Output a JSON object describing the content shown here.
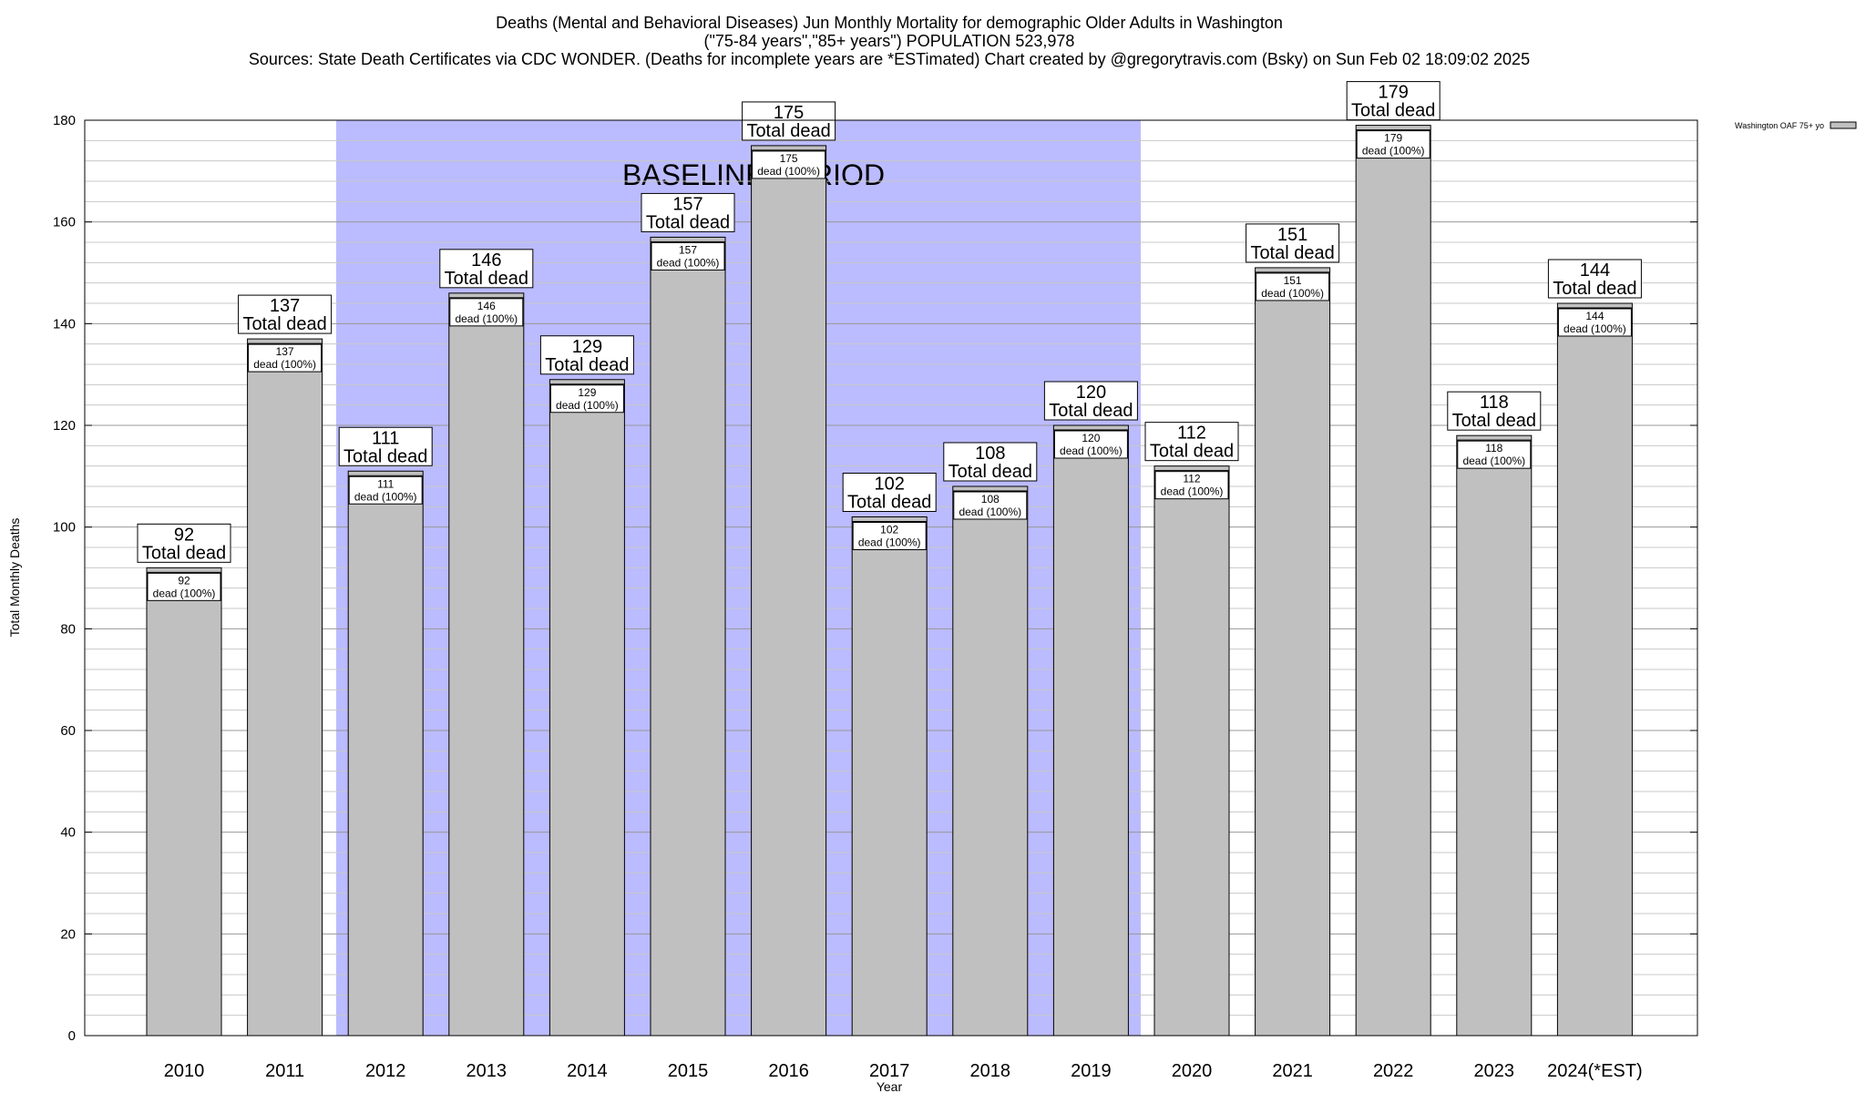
{
  "chart_data": {
    "type": "bar",
    "title_lines": [
      "Deaths (Mental and Behavioral Diseases) Jun Monthly Mortality for demographic Older Adults in Washington",
      "(\"75-84 years\",\"85+ years\") POPULATION 523,978",
      "Sources: State Death Certificates via CDC WONDER. (Deaths for incomplete years are *ESTimated)                Chart created by @gregorytravis.com (Bsky) on Sun Feb 02 18:09:02 2025"
    ],
    "xlabel": "Year",
    "ylabel": "Total Monthly Deaths",
    "ylim": [
      0,
      180
    ],
    "yticks": [
      0,
      20,
      40,
      60,
      80,
      100,
      120,
      140,
      160,
      180
    ],
    "grid": true,
    "categories": [
      "2010",
      "2011",
      "2012",
      "2013",
      "2014",
      "2015",
      "2016",
      "2017",
      "2018",
      "2019",
      "2020",
      "2021",
      "2022",
      "2023",
      "2024(*EST)"
    ],
    "series": [
      {
        "name": "Washington OAF 75+ yo",
        "values": [
          92,
          137,
          111,
          146,
          129,
          157,
          175,
          102,
          108,
          120,
          112,
          151,
          179,
          118,
          144
        ],
        "color": "#c0c0c0"
      }
    ],
    "total_label": "Total dead",
    "inner_label": "dead (100%)",
    "baseline_period": {
      "label": "BASELINE PERIOD",
      "start_index": 2,
      "end_index": 9,
      "color": "#bbbbff"
    },
    "legend_position": "top-right"
  }
}
